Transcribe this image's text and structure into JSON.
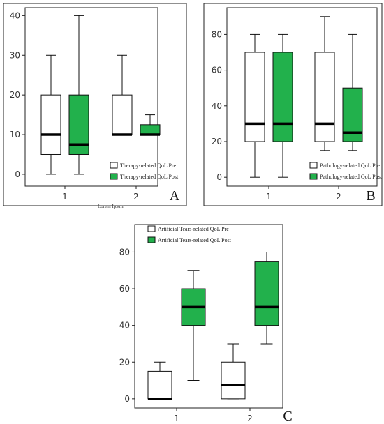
{
  "note": "Lorem Ipsum",
  "chart_data": [
    {
      "type": "box",
      "panel_label": "A",
      "ylim": [
        -3,
        42
      ],
      "yticks": [
        0,
        10,
        20,
        30,
        40
      ],
      "categories": [
        "1",
        "2"
      ],
      "legend_placement": "bottom-right",
      "series": [
        {
          "name": "Therapy-related QoL Pre",
          "color": "#ffffff",
          "boxes": [
            {
              "category": "1",
              "min": 0,
              "q1": 5,
              "median": 10,
              "q3": 20,
              "max": 30
            },
            {
              "category": "2",
              "min": 10,
              "q1": 10,
              "median": 10,
              "q3": 20,
              "max": 30
            }
          ]
        },
        {
          "name": "Therapy-related QoL Post",
          "color": "#22b14c",
          "boxes": [
            {
              "category": "1",
              "min": 0,
              "q1": 5,
              "median": 7.5,
              "q3": 20,
              "max": 40
            },
            {
              "category": "2",
              "min": 10,
              "q1": 10,
              "median": 10,
              "q3": 12.5,
              "max": 15
            }
          ]
        }
      ]
    },
    {
      "type": "box",
      "panel_label": "B",
      "ylim": [
        -5,
        95
      ],
      "yticks": [
        0,
        20,
        40,
        60,
        80
      ],
      "categories": [
        "1",
        "2"
      ],
      "legend_placement": "bottom-right",
      "series": [
        {
          "name": "Pathology-related QoL Pre",
          "color": "#ffffff",
          "boxes": [
            {
              "category": "1",
              "min": 0,
              "q1": 20,
              "median": 30,
              "q3": 70,
              "max": 80
            },
            {
              "category": "2",
              "min": 15,
              "q1": 20,
              "median": 30,
              "q3": 70,
              "max": 90
            }
          ]
        },
        {
          "name": "Pathology-related QoL Post",
          "color": "#22b14c",
          "boxes": [
            {
              "category": "1",
              "min": 0,
              "q1": 20,
              "median": 30,
              "q3": 70,
              "max": 80
            },
            {
              "category": "2",
              "min": 15,
              "q1": 20,
              "median": 25,
              "q3": 50,
              "max": 80
            }
          ]
        }
      ]
    },
    {
      "type": "box",
      "panel_label": "C",
      "ylim": [
        -5,
        95
      ],
      "yticks": [
        0,
        20,
        40,
        60,
        80
      ],
      "categories": [
        "1",
        "2"
      ],
      "legend_placement": "top-left",
      "series": [
        {
          "name": "Artificial Tears-related QoL Pre",
          "color": "#ffffff",
          "boxes": [
            {
              "category": "1",
              "min": 0,
              "q1": 0,
              "median": 0,
              "q3": 15,
              "max": 20
            },
            {
              "category": "2",
              "min": 0,
              "q1": 0,
              "median": 7.5,
              "q3": 20,
              "max": 30
            }
          ]
        },
        {
          "name": "Artificial Tears-related QoL Post",
          "color": "#22b14c",
          "boxes": [
            {
              "category": "1",
              "min": 10,
              "q1": 40,
              "median": 50,
              "q3": 60,
              "max": 70
            },
            {
              "category": "2",
              "min": 30,
              "q1": 40,
              "median": 50,
              "q3": 75,
              "max": 80
            }
          ]
        }
      ]
    }
  ]
}
